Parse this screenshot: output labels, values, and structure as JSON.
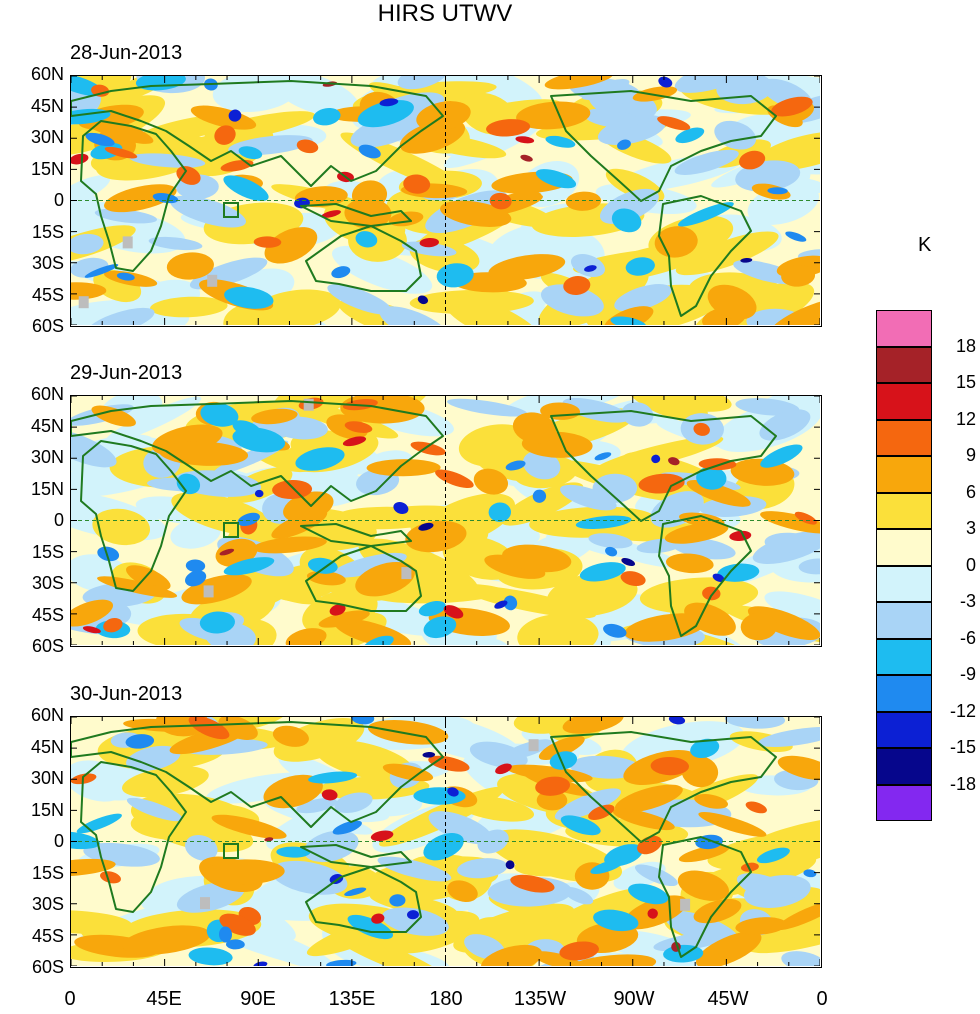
{
  "title": "HIRS UTWV",
  "unit": "K",
  "panels": [
    {
      "date": "28-Jun-2013"
    },
    {
      "date": "29-Jun-2013"
    },
    {
      "date": "30-Jun-2013"
    }
  ],
  "lat_labels": [
    "60N",
    "45N",
    "30N",
    "15N",
    "0",
    "15S",
    "30S",
    "45S",
    "60S"
  ],
  "lon_labels": [
    "0",
    "45E",
    "90E",
    "135E",
    "180",
    "135W",
    "90W",
    "45W",
    "0"
  ],
  "colorbar": {
    "labels": [
      "18",
      "15",
      "12",
      "9",
      "6",
      "3",
      "0",
      "-3",
      "-6",
      "-9",
      "-12",
      "-15",
      "-18"
    ],
    "colors": [
      "#f26db5",
      "#a52228",
      "#d7121a",
      "#f5670f",
      "#f8a70c",
      "#fbe03a",
      "#fffbcc",
      "#d2f3fb",
      "#a9d4f6",
      "#1ebcf0",
      "#1f8af0",
      "#0c20d4",
      "#06068c",
      "#8328f0"
    ]
  },
  "map_colors": {
    "coast": "#1f7a1f",
    "equator": "#2e8b2e",
    "dateline": "#000000",
    "missing": "#bdbdbd"
  }
}
